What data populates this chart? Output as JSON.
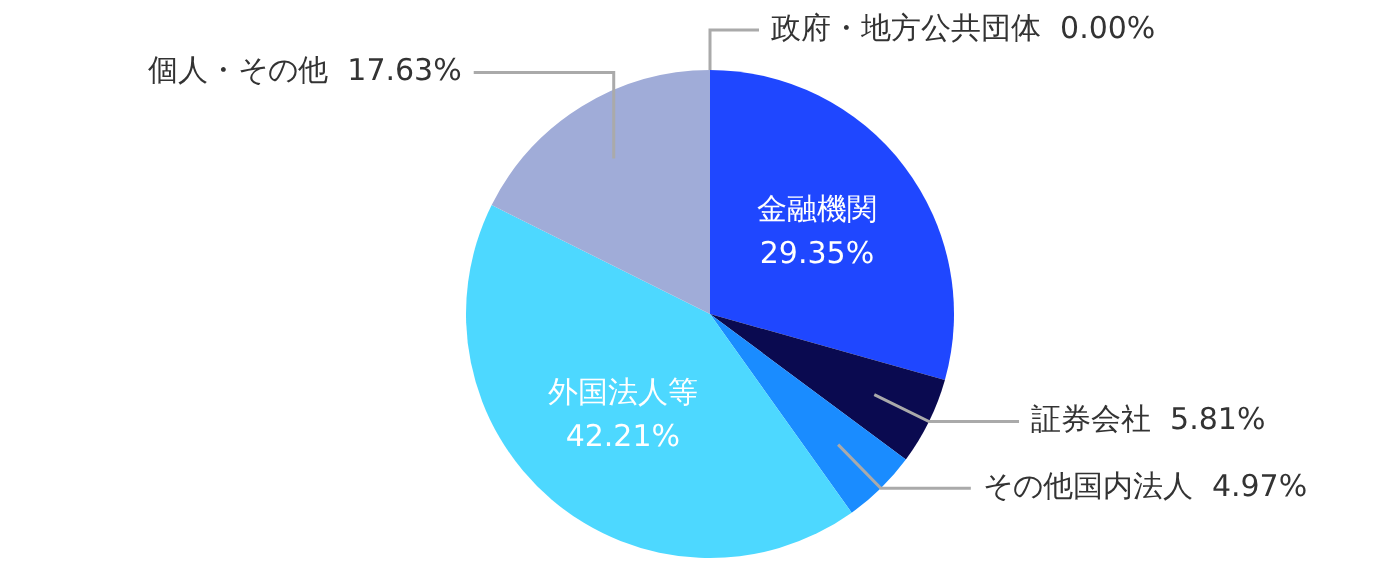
{
  "chart_data": {
    "type": "pie",
    "categories": [
      "政府・地方公共団体",
      "金融機関",
      "証券会社",
      "その他国内法人",
      "外国法人等",
      "個人・その他"
    ],
    "values": [
      0.0,
      29.35,
      5.81,
      4.97,
      42.21,
      17.63
    ],
    "value_labels": [
      "0.00%",
      "29.35%",
      "5.81%",
      "4.97%",
      "42.21%",
      "17.63%"
    ],
    "colors": [
      "#2a3a8a",
      "#1f47ff",
      "#0a0a50",
      "#1a8cff",
      "#4dd8ff",
      "#a0acd8"
    ],
    "legend": false
  }
}
